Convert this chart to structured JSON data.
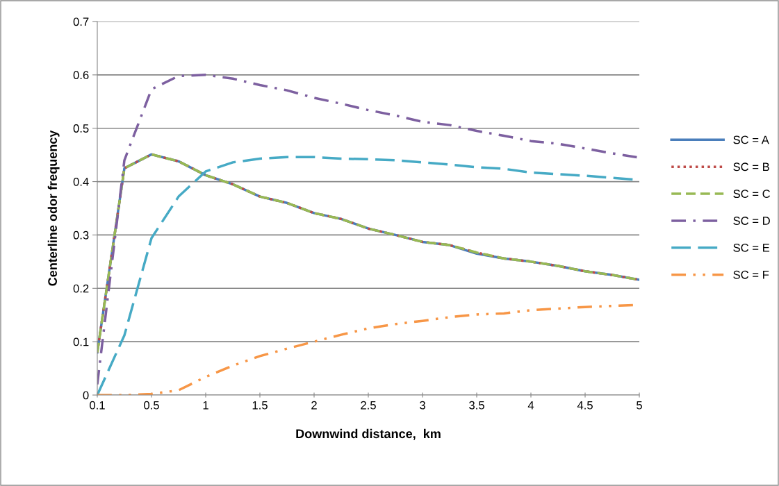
{
  "chart_data": {
    "type": "line",
    "xlabel": "Downwind distance,  km",
    "ylabel": "Centerline odor frequency",
    "categories": [
      "0.1",
      null,
      "0.5",
      null,
      "1",
      null,
      "1.5",
      null,
      "2",
      null,
      "2.5",
      null,
      "3",
      null,
      "3.5",
      null,
      "4",
      null,
      "4.5",
      null,
      "5"
    ],
    "ylim": [
      0,
      0.7
    ],
    "yticks": [
      {
        "value": 0,
        "label": "0"
      },
      0.1,
      0.2,
      0.3,
      0.4,
      0.5,
      0.6,
      0.7
    ],
    "grid": "y",
    "legend": "right",
    "marker": "none",
    "series": [
      {
        "name": "SC = A",
        "color": "#4a7ebb",
        "line_style": "solid",
        "values": [
          0.08,
          0.425,
          0.451,
          0.438,
          0.412,
          0.395,
          0.372,
          0.36,
          0.341,
          0.33,
          0.312,
          0.3,
          0.287,
          0.281,
          0.265,
          0.256,
          0.25,
          0.242,
          0.232,
          0.225,
          0.216
        ]
      },
      {
        "name": "SC = B",
        "color": "#be4b48",
        "line_style": "dotted",
        "values": [
          0.08,
          0.425,
          0.451,
          0.438,
          0.412,
          0.395,
          0.372,
          0.36,
          0.341,
          0.33,
          0.312,
          0.3,
          0.287,
          0.281,
          0.267,
          0.256,
          0.25,
          0.242,
          0.232,
          0.225,
          0.216
        ]
      },
      {
        "name": "SC = C",
        "color": "#98b954",
        "line_style": "dashed",
        "values": [
          0.08,
          0.425,
          0.451,
          0.438,
          0.412,
          0.395,
          0.372,
          0.36,
          0.341,
          0.33,
          0.312,
          0.3,
          0.287,
          0.281,
          0.267,
          0.256,
          0.25,
          0.242,
          0.232,
          0.225,
          0.216
        ]
      },
      {
        "name": "SC = D",
        "color": "#7d60a0",
        "line_style": "dashdot",
        "values": [
          0.02,
          0.44,
          0.573,
          0.598,
          0.6,
          0.593,
          0.581,
          0.571,
          0.557,
          0.546,
          0.534,
          0.524,
          0.512,
          0.506,
          0.495,
          0.486,
          0.476,
          0.471,
          0.462,
          0.453,
          0.445
        ]
      },
      {
        "name": "SC = E",
        "color": "#46aac5",
        "line_style": "longdash",
        "values": [
          0,
          0.112,
          0.294,
          0.372,
          0.419,
          0.436,
          0.443,
          0.446,
          0.446,
          0.443,
          0.442,
          0.44,
          0.436,
          0.432,
          0.427,
          0.424,
          0.417,
          0.414,
          0.411,
          0.407,
          0.403
        ]
      },
      {
        "name": "SC = F",
        "color": "#f79646",
        "line_style": "dashdotdot",
        "values": [
          0,
          0,
          0.002,
          0.009,
          0.034,
          0.055,
          0.073,
          0.087,
          0.1,
          0.113,
          0.125,
          0.133,
          0.139,
          0.146,
          0.151,
          0.153,
          0.159,
          0.162,
          0.165,
          0.167,
          0.169
        ]
      }
    ]
  }
}
